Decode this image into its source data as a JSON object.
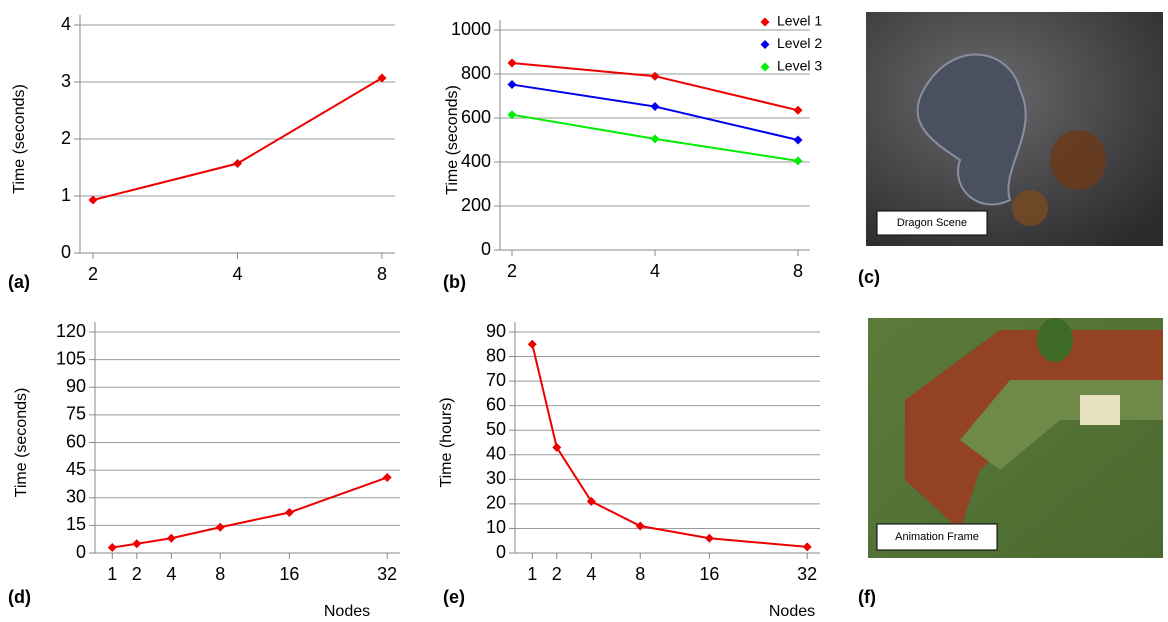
{
  "chart_data": [
    {
      "type": "line",
      "label": "(a)",
      "ylabel": "Time (seconds)",
      "categories": [
        "2",
        "4",
        "8"
      ],
      "series": [
        {
          "color": "#ee0000",
          "values": [
            0.93,
            1.57,
            3.07
          ]
        }
      ],
      "ylim": [
        0,
        4
      ],
      "yticks": [
        0,
        1,
        2,
        3,
        4
      ],
      "grid": true
    },
    {
      "type": "line",
      "label": "(b)",
      "ylabel": "Time (seconds)",
      "categories": [
        "2",
        "4",
        "8"
      ],
      "series": [
        {
          "name": "Level 1",
          "color": "#ee0000",
          "values": [
            850,
            790,
            635
          ]
        },
        {
          "name": "Level 2",
          "color": "#0000ee",
          "values": [
            752,
            652,
            500
          ]
        },
        {
          "name": "Level 3",
          "color": "#00ee00",
          "values": [
            615,
            505,
            405
          ]
        }
      ],
      "ylim": [
        0,
        1000
      ],
      "yticks": [
        0,
        200,
        400,
        600,
        800,
        1000
      ],
      "grid": true,
      "legend": "upper-right"
    },
    {
      "type": "line",
      "label": "(d)",
      "ylabel": "Time (seconds)",
      "xlabel": "Nodes",
      "x": [
        1,
        2,
        4,
        8,
        16,
        32
      ],
      "series": [
        {
          "color": "#ee0000",
          "values": [
            3,
            5,
            8,
            14,
            22,
            41
          ]
        }
      ],
      "xlim": [
        0.5,
        34.5
      ],
      "xscale": "sqrt",
      "xticks": [
        1,
        2,
        4,
        8,
        16,
        32
      ],
      "ylim": [
        0,
        120
      ],
      "yticks": [
        0,
        15,
        30,
        45,
        60,
        75,
        90,
        105,
        120
      ],
      "grid": true
    },
    {
      "type": "line",
      "label": "(e)",
      "ylabel": "Time (hours)",
      "xlabel": "Nodes",
      "x": [
        1,
        2,
        4,
        8,
        16,
        32
      ],
      "series": [
        {
          "color": "#ee0000",
          "values": [
            85,
            43,
            21,
            11,
            6,
            2.5
          ]
        }
      ],
      "xlim": [
        0.5,
        34.5
      ],
      "xscale": "sqrt",
      "xticks": [
        1,
        2,
        4,
        8,
        16,
        32
      ],
      "ylim": [
        0,
        90
      ],
      "yticks": [
        0,
        10,
        20,
        30,
        40,
        50,
        60,
        70,
        80,
        90
      ],
      "grid": true
    }
  ],
  "images": [
    {
      "label": "(c)",
      "caption": "Dragon Scene"
    },
    {
      "label": "(f)",
      "caption": "Animation Frame"
    }
  ]
}
